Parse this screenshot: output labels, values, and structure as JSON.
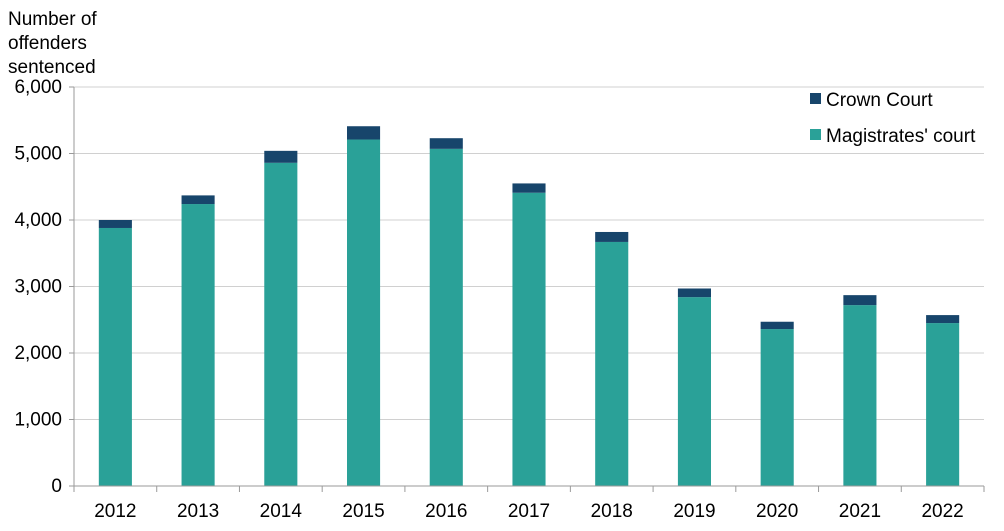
{
  "chart_data": {
    "type": "bar",
    "stacked": true,
    "title": "",
    "ylabel_lines": [
      "Number  of",
      "offenders",
      "sentenced"
    ],
    "xlabel": "",
    "categories": [
      "2012",
      "2013",
      "2014",
      "2015",
      "2016",
      "2017",
      "2018",
      "2019",
      "2020",
      "2021",
      "2022"
    ],
    "series": [
      {
        "name": "Magistrates' court",
        "color": "#2aa198",
        "values": [
          3880,
          4240,
          4860,
          5210,
          5070,
          4410,
          3670,
          2840,
          2360,
          2720,
          2450
        ]
      },
      {
        "name": "Crown Court",
        "color": "#17456b",
        "values": [
          120,
          130,
          180,
          200,
          160,
          140,
          150,
          130,
          110,
          150,
          120
        ]
      }
    ],
    "ylim": [
      0,
      6000
    ],
    "yticks": [
      "0",
      "1,000",
      "2,000",
      "3,000",
      "4,000",
      "5,000",
      "6,000"
    ],
    "ytick_values": [
      0,
      1000,
      2000,
      3000,
      4000,
      5000,
      6000
    ],
    "legend": [
      "Crown Court",
      "Magistrates' court"
    ],
    "legend_position": "top-right",
    "grid": true,
    "grid_color": "#d0d0d0",
    "axis_color": "#9a9a9a"
  }
}
